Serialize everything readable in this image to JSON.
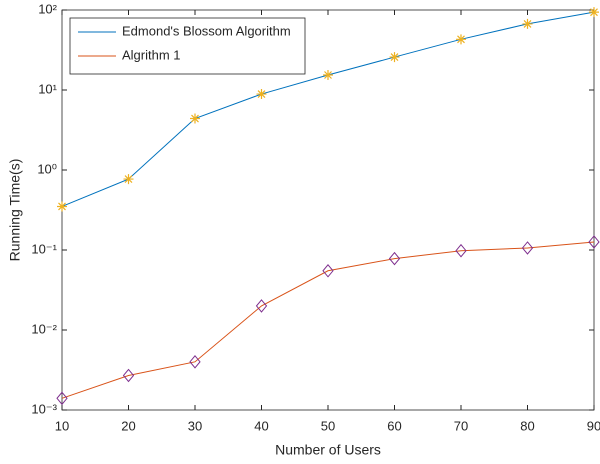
{
  "chart_data": {
    "type": "line",
    "x_label": "Number of Users",
    "y_label": "Running Time(s)",
    "x": [
      10,
      20,
      30,
      40,
      50,
      60,
      70,
      80,
      90
    ],
    "series": [
      {
        "name": "Edmond's Blossom Algorithm",
        "color": "#0072bd",
        "marker": "asterisk",
        "marker_color": "#edb120",
        "values": [
          0.35,
          0.77,
          4.4,
          8.9,
          15.4,
          25.8,
          43,
          67,
          94
        ]
      },
      {
        "name": "Algrithm 1",
        "color": "#d95319",
        "marker": "diamond",
        "marker_color": "#7e2f8e",
        "values": [
          0.0014,
          0.0027,
          0.004,
          0.02,
          0.055,
          0.078,
          0.098,
          0.106,
          0.126
        ]
      }
    ],
    "xlim": [
      10,
      90
    ],
    "xticks": [
      10,
      20,
      30,
      40,
      50,
      60,
      70,
      80,
      90
    ],
    "ylim": [
      0.001,
      100
    ],
    "yscale": "log",
    "yticks": [
      {
        "value": 0.001,
        "label": "10⁻³"
      },
      {
        "value": 0.01,
        "label": "10⁻²"
      },
      {
        "value": 0.1,
        "label": "10⁻¹"
      },
      {
        "value": 1,
        "label": "10⁰"
      },
      {
        "value": 10,
        "label": "10¹"
      },
      {
        "value": 100,
        "label": "10²"
      }
    ],
    "grid": false,
    "legend": "upper-left"
  }
}
